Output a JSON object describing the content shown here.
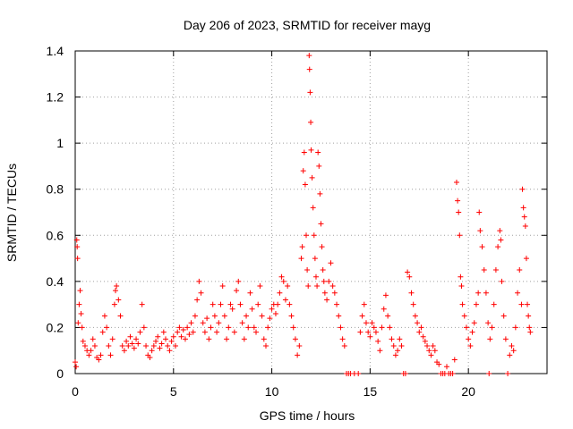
{
  "chart_data": {
    "type": "scatter",
    "title": "Day 206 of 2023, SRMTID for receiver mayg",
    "xlabel": "GPS time / hours",
    "ylabel": "SRMTID / TECUs",
    "xlim": [
      0,
      24
    ],
    "ylim": [
      0,
      1.4
    ],
    "x_ticks": [
      0,
      5,
      10,
      15,
      20
    ],
    "x_tick_labels": [
      "0",
      "5",
      "10",
      "15",
      "20"
    ],
    "y_ticks": [
      0,
      0.2,
      0.4,
      0.6,
      0.8,
      1.0,
      1.2,
      1.4
    ],
    "y_tick_labels": [
      "0",
      "0.2",
      "0.4",
      "0.6",
      "0.8",
      "1",
      "1.2",
      "1.4"
    ],
    "grid": true,
    "marker": "+",
    "color": "#ff0000",
    "series": [
      {
        "name": "SRMTID",
        "points": [
          [
            0.0,
            0.05
          ],
          [
            0.05,
            0.03
          ],
          [
            0.08,
            0.58
          ],
          [
            0.1,
            0.55
          ],
          [
            0.12,
            0.5
          ],
          [
            0.15,
            0.22
          ],
          [
            0.2,
            0.3
          ],
          [
            0.25,
            0.36
          ],
          [
            0.3,
            0.26
          ],
          [
            0.35,
            0.2
          ],
          [
            0.4,
            0.14
          ],
          [
            0.5,
            0.12
          ],
          [
            0.6,
            0.1
          ],
          [
            0.7,
            0.08
          ],
          [
            0.8,
            0.1
          ],
          [
            0.9,
            0.15
          ],
          [
            1.0,
            0.12
          ],
          [
            1.1,
            0.07
          ],
          [
            1.2,
            0.06
          ],
          [
            1.3,
            0.08
          ],
          [
            1.4,
            0.18
          ],
          [
            1.5,
            0.25
          ],
          [
            1.6,
            0.2
          ],
          [
            1.7,
            0.12
          ],
          [
            1.8,
            0.08
          ],
          [
            1.9,
            0.15
          ],
          [
            2.0,
            0.3
          ],
          [
            2.05,
            0.36
          ],
          [
            2.1,
            0.38
          ],
          [
            2.2,
            0.32
          ],
          [
            2.3,
            0.25
          ],
          [
            2.4,
            0.12
          ],
          [
            2.5,
            0.1
          ],
          [
            2.6,
            0.14
          ],
          [
            2.7,
            0.12
          ],
          [
            2.8,
            0.16
          ],
          [
            2.9,
            0.13
          ],
          [
            3.0,
            0.11
          ],
          [
            3.1,
            0.15
          ],
          [
            3.2,
            0.13
          ],
          [
            3.3,
            0.18
          ],
          [
            3.4,
            0.3
          ],
          [
            3.5,
            0.2
          ],
          [
            3.6,
            0.12
          ],
          [
            3.7,
            0.08
          ],
          [
            3.8,
            0.07
          ],
          [
            3.9,
            0.1
          ],
          [
            4.0,
            0.12
          ],
          [
            4.1,
            0.14
          ],
          [
            4.2,
            0.16
          ],
          [
            4.3,
            0.11
          ],
          [
            4.4,
            0.13
          ],
          [
            4.5,
            0.18
          ],
          [
            4.6,
            0.15
          ],
          [
            4.7,
            0.12
          ],
          [
            4.8,
            0.1
          ],
          [
            4.9,
            0.14
          ],
          [
            5.0,
            0.16
          ],
          [
            5.1,
            0.12
          ],
          [
            5.2,
            0.18
          ],
          [
            5.3,
            0.2
          ],
          [
            5.4,
            0.16
          ],
          [
            5.5,
            0.19
          ],
          [
            5.6,
            0.15
          ],
          [
            5.7,
            0.2
          ],
          [
            5.8,
            0.17
          ],
          [
            5.9,
            0.22
          ],
          [
            6.0,
            0.18
          ],
          [
            6.1,
            0.25
          ],
          [
            6.2,
            0.32
          ],
          [
            6.3,
            0.4
          ],
          [
            6.4,
            0.35
          ],
          [
            6.5,
            0.22
          ],
          [
            6.6,
            0.18
          ],
          [
            6.7,
            0.24
          ],
          [
            6.8,
            0.15
          ],
          [
            6.9,
            0.2
          ],
          [
            7.0,
            0.3
          ],
          [
            7.1,
            0.25
          ],
          [
            7.2,
            0.18
          ],
          [
            7.3,
            0.22
          ],
          [
            7.4,
            0.3
          ],
          [
            7.5,
            0.38
          ],
          [
            7.6,
            0.25
          ],
          [
            7.7,
            0.15
          ],
          [
            7.8,
            0.2
          ],
          [
            7.9,
            0.3
          ],
          [
            8.0,
            0.28
          ],
          [
            8.1,
            0.18
          ],
          [
            8.2,
            0.36
          ],
          [
            8.3,
            0.4
          ],
          [
            8.4,
            0.3
          ],
          [
            8.5,
            0.22
          ],
          [
            8.6,
            0.15
          ],
          [
            8.7,
            0.25
          ],
          [
            8.8,
            0.2
          ],
          [
            8.9,
            0.35
          ],
          [
            9.0,
            0.28
          ],
          [
            9.1,
            0.2
          ],
          [
            9.2,
            0.18
          ],
          [
            9.3,
            0.3
          ],
          [
            9.4,
            0.38
          ],
          [
            9.5,
            0.25
          ],
          [
            9.6,
            0.15
          ],
          [
            9.7,
            0.12
          ],
          [
            9.8,
            0.2
          ],
          [
            9.9,
            0.24
          ],
          [
            10.0,
            0.28
          ],
          [
            10.1,
            0.3
          ],
          [
            10.2,
            0.26
          ],
          [
            10.3,
            0.3
          ],
          [
            10.4,
            0.35
          ],
          [
            10.5,
            0.42
          ],
          [
            10.6,
            0.4
          ],
          [
            10.7,
            0.32
          ],
          [
            10.8,
            0.38
          ],
          [
            10.9,
            0.3
          ],
          [
            11.0,
            0.25
          ],
          [
            11.1,
            0.2
          ],
          [
            11.2,
            0.15
          ],
          [
            11.3,
            0.08
          ],
          [
            11.4,
            0.12
          ],
          [
            11.5,
            0.5
          ],
          [
            11.55,
            0.55
          ],
          [
            11.6,
            0.88
          ],
          [
            11.65,
            0.96
          ],
          [
            11.7,
            0.82
          ],
          [
            11.75,
            0.6
          ],
          [
            11.8,
            0.45
          ],
          [
            11.85,
            0.38
          ],
          [
            11.9,
            1.38
          ],
          [
            11.92,
            1.32
          ],
          [
            11.95,
            1.22
          ],
          [
            11.98,
            1.09
          ],
          [
            12.0,
            0.97
          ],
          [
            12.05,
            0.85
          ],
          [
            12.1,
            0.72
          ],
          [
            12.15,
            0.6
          ],
          [
            12.2,
            0.5
          ],
          [
            12.25,
            0.42
          ],
          [
            12.3,
            0.38
          ],
          [
            12.35,
            0.96
          ],
          [
            12.4,
            0.9
          ],
          [
            12.45,
            0.78
          ],
          [
            12.5,
            0.65
          ],
          [
            12.55,
            0.55
          ],
          [
            12.6,
            0.45
          ],
          [
            12.65,
            0.4
          ],
          [
            12.7,
            0.35
          ],
          [
            12.8,
            0.32
          ],
          [
            12.9,
            0.4
          ],
          [
            13.0,
            0.48
          ],
          [
            13.1,
            0.38
          ],
          [
            13.2,
            0.35
          ],
          [
            13.3,
            0.3
          ],
          [
            13.4,
            0.25
          ],
          [
            13.5,
            0.2
          ],
          [
            13.6,
            0.15
          ],
          [
            13.7,
            0.12
          ],
          [
            13.8,
            0.0
          ],
          [
            13.9,
            0.0
          ],
          [
            14.0,
            0.0
          ],
          [
            14.2,
            0.0
          ],
          [
            14.4,
            0.0
          ],
          [
            14.5,
            0.18
          ],
          [
            14.6,
            0.25
          ],
          [
            14.7,
            0.3
          ],
          [
            14.8,
            0.22
          ],
          [
            14.9,
            0.18
          ],
          [
            15.0,
            0.16
          ],
          [
            15.1,
            0.22
          ],
          [
            15.2,
            0.2
          ],
          [
            15.3,
            0.18
          ],
          [
            15.4,
            0.14
          ],
          [
            15.5,
            0.1
          ],
          [
            15.6,
            0.2
          ],
          [
            15.7,
            0.28
          ],
          [
            15.8,
            0.34
          ],
          [
            15.9,
            0.25
          ],
          [
            16.0,
            0.2
          ],
          [
            16.1,
            0.15
          ],
          [
            16.2,
            0.12
          ],
          [
            16.3,
            0.08
          ],
          [
            16.4,
            0.1
          ],
          [
            16.5,
            0.15
          ],
          [
            16.6,
            0.12
          ],
          [
            16.7,
            0.0
          ],
          [
            16.8,
            0.0
          ],
          [
            16.9,
            0.44
          ],
          [
            17.0,
            0.42
          ],
          [
            17.1,
            0.35
          ],
          [
            17.2,
            0.3
          ],
          [
            17.3,
            0.25
          ],
          [
            17.4,
            0.22
          ],
          [
            17.5,
            0.18
          ],
          [
            17.6,
            0.2
          ],
          [
            17.7,
            0.16
          ],
          [
            17.8,
            0.14
          ],
          [
            17.9,
            0.12
          ],
          [
            18.0,
            0.1
          ],
          [
            18.1,
            0.08
          ],
          [
            18.2,
            0.12
          ],
          [
            18.3,
            0.1
          ],
          [
            18.4,
            0.05
          ],
          [
            18.5,
            0.04
          ],
          [
            18.6,
            0.0
          ],
          [
            18.7,
            0.0
          ],
          [
            18.8,
            0.0
          ],
          [
            18.9,
            0.03
          ],
          [
            19.0,
            0.0
          ],
          [
            19.1,
            0.0
          ],
          [
            19.2,
            0.0
          ],
          [
            19.3,
            0.06
          ],
          [
            19.4,
            0.83
          ],
          [
            19.45,
            0.75
          ],
          [
            19.5,
            0.7
          ],
          [
            19.55,
            0.6
          ],
          [
            19.6,
            0.42
          ],
          [
            19.65,
            0.38
          ],
          [
            19.7,
            0.3
          ],
          [
            19.8,
            0.25
          ],
          [
            19.9,
            0.2
          ],
          [
            20.0,
            0.15
          ],
          [
            20.1,
            0.12
          ],
          [
            20.2,
            0.18
          ],
          [
            20.3,
            0.22
          ],
          [
            20.4,
            0.3
          ],
          [
            20.5,
            0.35
          ],
          [
            20.55,
            0.7
          ],
          [
            20.6,
            0.62
          ],
          [
            20.7,
            0.55
          ],
          [
            20.8,
            0.45
          ],
          [
            20.9,
            0.35
          ],
          [
            21.0,
            0.22
          ],
          [
            21.05,
            0.0
          ],
          [
            21.1,
            0.15
          ],
          [
            21.2,
            0.2
          ],
          [
            21.3,
            0.3
          ],
          [
            21.4,
            0.45
          ],
          [
            21.5,
            0.55
          ],
          [
            21.6,
            0.62
          ],
          [
            21.65,
            0.58
          ],
          [
            21.7,
            0.4
          ],
          [
            21.8,
            0.25
          ],
          [
            21.9,
            0.15
          ],
          [
            22.0,
            0.0
          ],
          [
            22.1,
            0.08
          ],
          [
            22.2,
            0.12
          ],
          [
            22.3,
            0.1
          ],
          [
            22.4,
            0.2
          ],
          [
            22.5,
            0.35
          ],
          [
            22.6,
            0.45
          ],
          [
            22.7,
            0.3
          ],
          [
            22.75,
            0.8
          ],
          [
            22.8,
            0.72
          ],
          [
            22.85,
            0.68
          ],
          [
            22.9,
            0.64
          ],
          [
            22.95,
            0.5
          ],
          [
            23.0,
            0.3
          ],
          [
            23.05,
            0.25
          ],
          [
            23.1,
            0.2
          ],
          [
            23.15,
            0.18
          ]
        ]
      }
    ]
  }
}
